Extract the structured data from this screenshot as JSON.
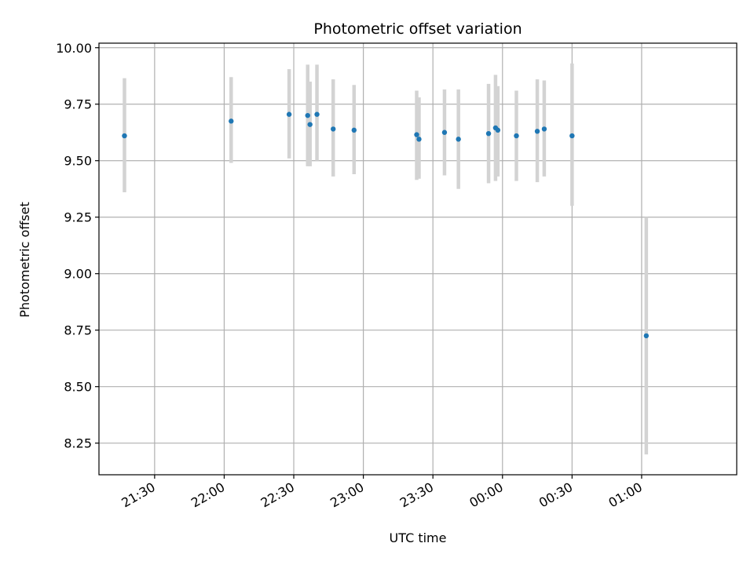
{
  "chart_data": {
    "type": "scatter",
    "title": "Photometric offset variation",
    "xlabel": "UTC time",
    "ylabel": "Photometric offset",
    "grid": true,
    "xlim_minutes": [
      1266,
      1541
    ],
    "ylim": [
      8.11,
      10.02
    ],
    "y_ticks": [
      8.25,
      8.5,
      8.75,
      9.0,
      9.25,
      9.5,
      9.75,
      10.0
    ],
    "y_tick_labels": [
      "8.25",
      "8.50",
      "8.75",
      "9.00",
      "9.25",
      "9.50",
      "9.75",
      "10.00"
    ],
    "x_tick_labels": [
      "21:30",
      "22:00",
      "22:30",
      "23:00",
      "23:30",
      "00:00",
      "00:30",
      "01:00"
    ],
    "point_color": "#1f77b4",
    "errorbar_color": "#d3d3d3",
    "points": [
      {
        "t": "21:17",
        "y": 9.61,
        "ylo": 9.36,
        "yhi": 9.865
      },
      {
        "t": "22:03",
        "y": 9.675,
        "ylo": 9.49,
        "yhi": 9.87
      },
      {
        "t": "22:28",
        "y": 9.705,
        "ylo": 9.51,
        "yhi": 9.905
      },
      {
        "t": "22:36",
        "y": 9.7,
        "ylo": 9.475,
        "yhi": 9.925
      },
      {
        "t": "22:37",
        "y": 9.66,
        "ylo": 9.475,
        "yhi": 9.85
      },
      {
        "t": "22:40",
        "y": 9.705,
        "ylo": 9.5,
        "yhi": 9.925
      },
      {
        "t": "22:47",
        "y": 9.64,
        "ylo": 9.43,
        "yhi": 9.86
      },
      {
        "t": "22:56",
        "y": 9.635,
        "ylo": 9.44,
        "yhi": 9.835
      },
      {
        "t": "23:23",
        "y": 9.615,
        "ylo": 9.415,
        "yhi": 9.81
      },
      {
        "t": "23:24",
        "y": 9.595,
        "ylo": 9.42,
        "yhi": 9.78
      },
      {
        "t": "23:35",
        "y": 9.625,
        "ylo": 9.435,
        "yhi": 9.815
      },
      {
        "t": "23:41",
        "y": 9.595,
        "ylo": 9.375,
        "yhi": 9.815
      },
      {
        "t": "23:54",
        "y": 9.62,
        "ylo": 9.4,
        "yhi": 9.84
      },
      {
        "t": "23:57",
        "y": 9.645,
        "ylo": 9.41,
        "yhi": 9.88
      },
      {
        "t": "23:58",
        "y": 9.635,
        "ylo": 9.43,
        "yhi": 9.83
      },
      {
        "t": "00:06",
        "y": 9.61,
        "ylo": 9.41,
        "yhi": 9.81
      },
      {
        "t": "00:15",
        "y": 9.63,
        "ylo": 9.405,
        "yhi": 9.86
      },
      {
        "t": "00:18",
        "y": 9.64,
        "ylo": 9.43,
        "yhi": 9.855
      },
      {
        "t": "00:30",
        "y": 9.61,
        "ylo": 9.3,
        "yhi": 9.93
      },
      {
        "t": "01:02",
        "y": 8.725,
        "ylo": 8.2,
        "yhi": 9.25
      }
    ]
  }
}
